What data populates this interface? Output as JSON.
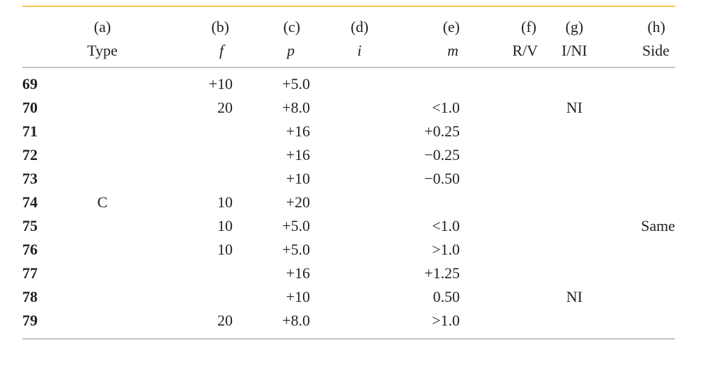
{
  "columns": [
    {
      "letter": "(a)",
      "name": "Type"
    },
    {
      "letter": "(b)",
      "name": "f"
    },
    {
      "letter": "(c)",
      "name": "p"
    },
    {
      "letter": "(d)",
      "name": "i"
    },
    {
      "letter": "(e)",
      "name": "m"
    },
    {
      "letter": "(f)",
      "name": "R/V"
    },
    {
      "letter": "(g)",
      "name": "I/NI"
    },
    {
      "letter": "(h)",
      "name": "Side"
    }
  ],
  "rows": [
    {
      "num": "69",
      "type": "",
      "f": "+10",
      "p": "+5.0",
      "i": "",
      "m": "",
      "rv": "",
      "ini": "",
      "side": ""
    },
    {
      "num": "70",
      "type": "",
      "f": "20",
      "p": "+8.0",
      "i": "",
      "m": "<1.0",
      "rv": "",
      "ini": "NI",
      "side": ""
    },
    {
      "num": "71",
      "type": "",
      "f": "",
      "p": "+16",
      "i": "",
      "m": "+0.25",
      "rv": "",
      "ini": "",
      "side": ""
    },
    {
      "num": "72",
      "type": "",
      "f": "",
      "p": "+16",
      "i": "",
      "m": "−0.25",
      "rv": "",
      "ini": "",
      "side": ""
    },
    {
      "num": "73",
      "type": "",
      "f": "",
      "p": "+10",
      "i": "",
      "m": "−0.50",
      "rv": "",
      "ini": "",
      "side": ""
    },
    {
      "num": "74",
      "type": "C",
      "f": "10",
      "p": "+20",
      "i": "",
      "m": "",
      "rv": "",
      "ini": "",
      "side": ""
    },
    {
      "num": "75",
      "type": "",
      "f": "10",
      "p": "+5.0",
      "i": "",
      "m": "<1.0",
      "rv": "",
      "ini": "",
      "side": "Same"
    },
    {
      "num": "76",
      "type": "",
      "f": "10",
      "p": "+5.0",
      "i": "",
      "m": ">1.0",
      "rv": "",
      "ini": "",
      "side": ""
    },
    {
      "num": "77",
      "type": "",
      "f": "",
      "p": "+16",
      "i": "",
      "m": "+1.25",
      "rv": "",
      "ini": "",
      "side": ""
    },
    {
      "num": "78",
      "type": "",
      "f": "",
      "p": "+10",
      "i": "",
      "m": "0.50",
      "rv": "",
      "ini": "NI",
      "side": ""
    },
    {
      "num": "79",
      "type": "",
      "f": "20",
      "p": "+8.0",
      "i": "",
      "m": ">1.0",
      "rv": "",
      "ini": "",
      "side": ""
    }
  ],
  "colors": {
    "top_rule": "#f5c64a",
    "rule": "#c4c4c4",
    "text": "#231f20"
  }
}
